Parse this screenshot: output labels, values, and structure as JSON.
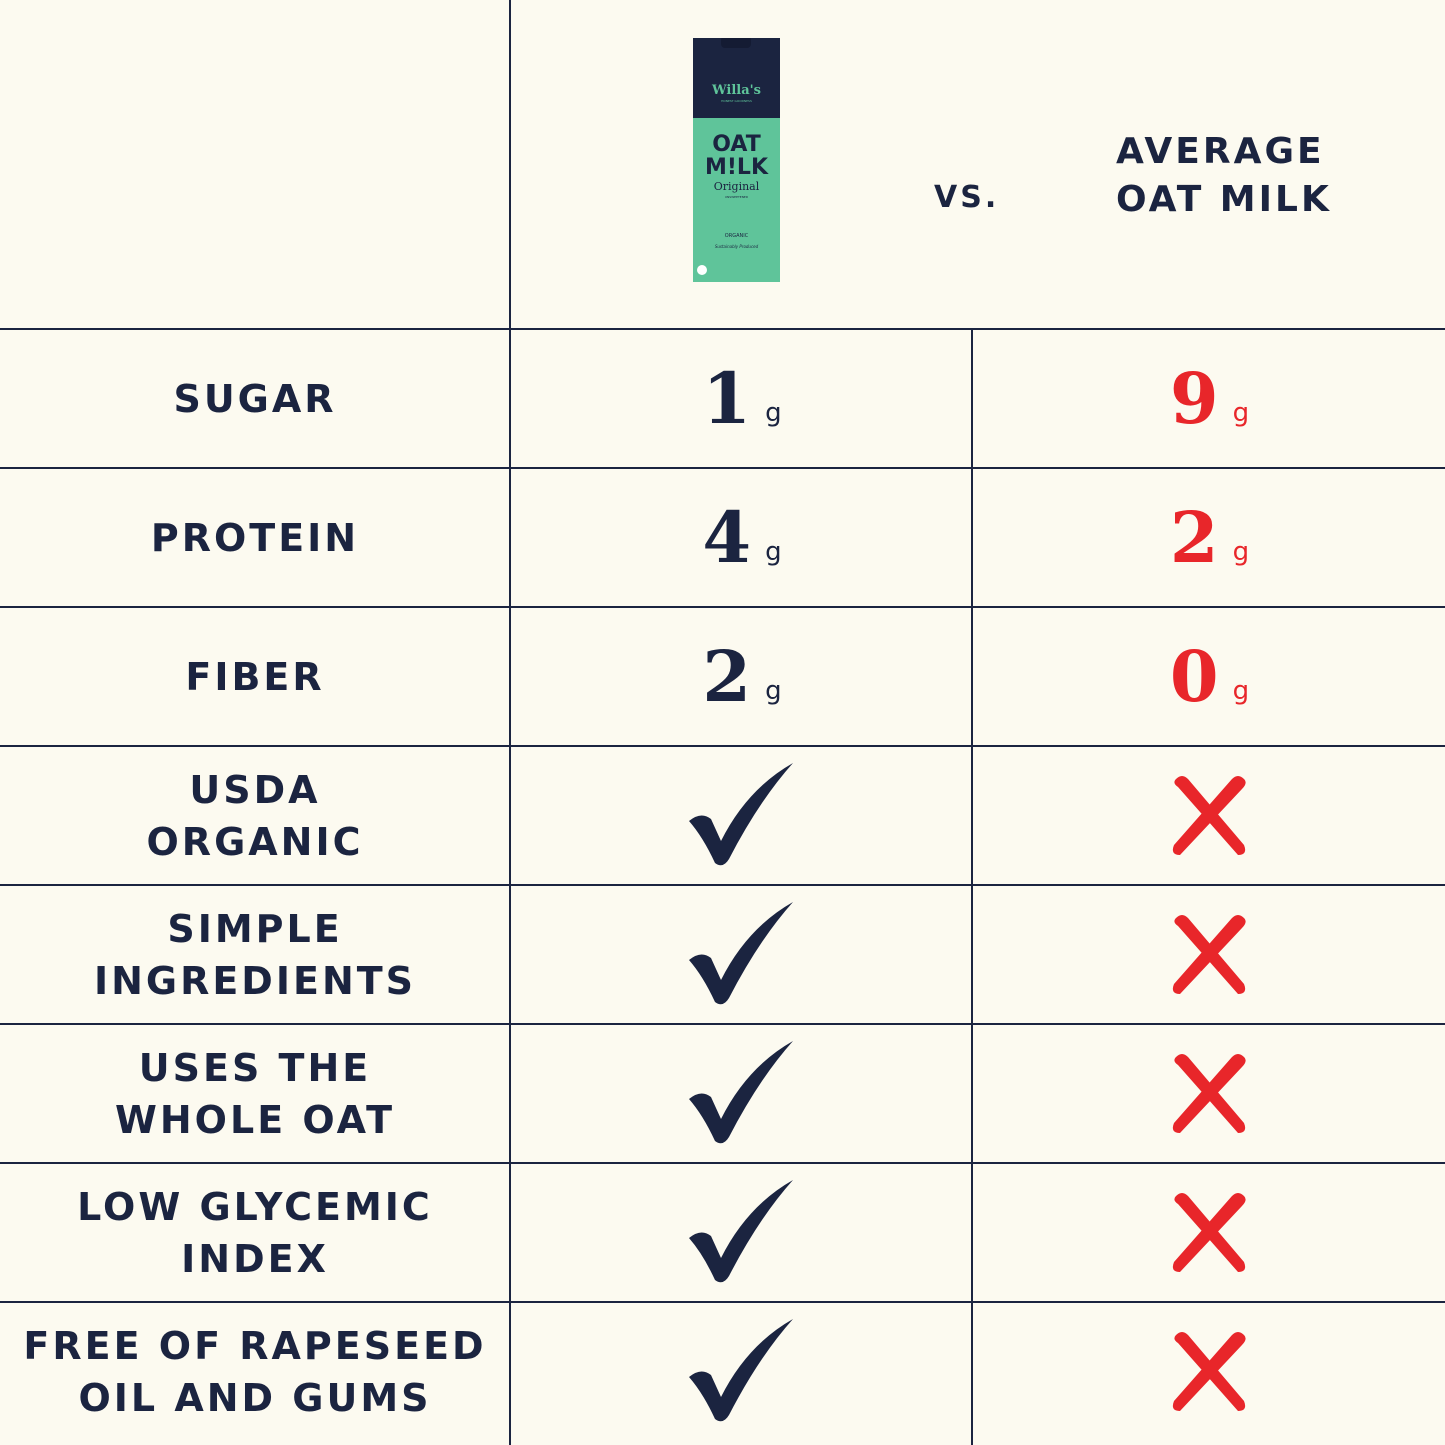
{
  "header": {
    "product": {
      "brand": "Willa's",
      "tagline": "HONEST GOODNESS",
      "name_line1": "OAT",
      "name_line2": "M!LK",
      "variant": "Original",
      "subvariant": "UNSWEETENED",
      "badge": "ORGANIC",
      "footer": "Sustainably Produced"
    },
    "vs": "VS.",
    "competitor": "AVERAGE\nOAT MILK"
  },
  "colors": {
    "background": "#fcfaf0",
    "navy": "#1b2440",
    "red": "#e8262a",
    "carton_green": "#5fc49a"
  },
  "rows": [
    {
      "label": "SUGAR",
      "willas": "1",
      "average": "9",
      "unit": "g"
    },
    {
      "label": "PROTEIN",
      "willas": "4",
      "average": "2",
      "unit": "g"
    },
    {
      "label": "FIBER",
      "willas": "2",
      "average": "0",
      "unit": "g"
    },
    {
      "label": "USDA\nORGANIC",
      "willas": "check-icon",
      "average": "x-icon"
    },
    {
      "label": "SIMPLE\nINGREDIENTS",
      "willas": "check-icon",
      "average": "x-icon"
    },
    {
      "label": "USES THE\nWHOLE OAT",
      "willas": "check-icon",
      "average": "x-icon"
    },
    {
      "label": "LOW GLYCEMIC\nINDEX",
      "willas": "check-icon",
      "average": "x-icon"
    },
    {
      "label": "FREE OF RAPESEED\nOIL AND GUMS",
      "willas": "check-icon",
      "average": "x-icon"
    }
  ]
}
